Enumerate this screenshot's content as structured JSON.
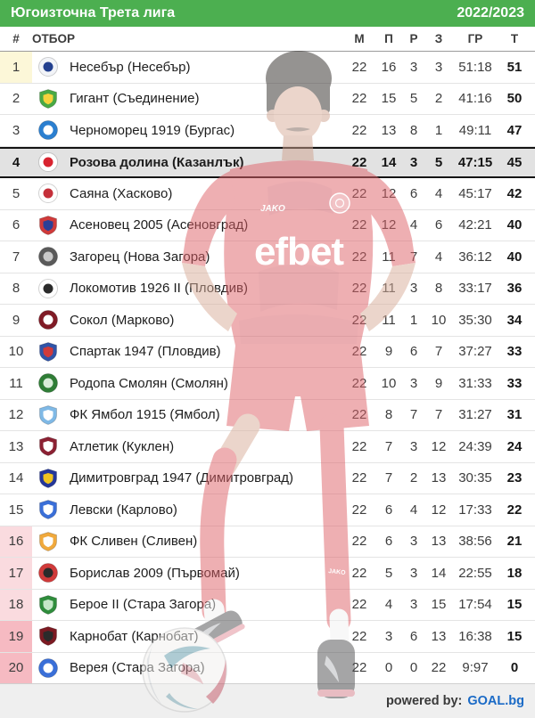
{
  "header": {
    "league": "Югоизточна Трета лига",
    "season": "2022/2023",
    "bg_color": "#4caf50"
  },
  "columns": {
    "pos": "#",
    "team": "ОТБОР",
    "m": "М",
    "p": "П",
    "r": "Р",
    "z": "З",
    "gr": "ГР",
    "t": "Т"
  },
  "highlight_colors": {
    "promotion": "#fcf7d8",
    "relegation_light": "#fadbdf",
    "relegation_dark": "#f6bac2",
    "leader_row": "#e2e2e2"
  },
  "rows": [
    {
      "pos": "1",
      "team": "Несебър (Несебър)",
      "m": "22",
      "p": "16",
      "r": "3",
      "z": "3",
      "gr": "51:18",
      "t": "51",
      "highlight": "promotion",
      "emphasized": false,
      "badge": {
        "shape": "circle",
        "c1": "#f2f4f8",
        "c2": "#23408f"
      }
    },
    {
      "pos": "2",
      "team": "Гигант (Съединение)",
      "m": "22",
      "p": "15",
      "r": "5",
      "z": "2",
      "gr": "41:16",
      "t": "50",
      "highlight": null,
      "emphasized": false,
      "badge": {
        "shape": "shield",
        "c1": "#49a944",
        "c2": "#f5d23c"
      }
    },
    {
      "pos": "3",
      "team": "Черноморец 1919 (Бургас)",
      "m": "22",
      "p": "13",
      "r": "8",
      "z": "1",
      "gr": "49:11",
      "t": "47",
      "highlight": null,
      "emphasized": false,
      "badge": {
        "shape": "circle",
        "c1": "#2b7fd0",
        "c2": "#ffffff"
      }
    },
    {
      "pos": "4",
      "team": "Розова долина (Казанлък)",
      "m": "22",
      "p": "14",
      "r": "3",
      "z": "5",
      "gr": "47:15",
      "t": "45",
      "highlight": null,
      "emphasized": true,
      "badge": {
        "shape": "circle",
        "c1": "#ffffff",
        "c2": "#d8232f"
      }
    },
    {
      "pos": "5",
      "team": "Саяна (Хасково)",
      "m": "22",
      "p": "12",
      "r": "6",
      "z": "4",
      "gr": "45:17",
      "t": "42",
      "highlight": null,
      "emphasized": false,
      "badge": {
        "shape": "circle",
        "c1": "#ffffff",
        "c2": "#c5303a"
      }
    },
    {
      "pos": "6",
      "team": "Асеновец 2005 (Асеновград)",
      "m": "22",
      "p": "12",
      "r": "4",
      "z": "6",
      "gr": "42:21",
      "t": "40",
      "highlight": null,
      "emphasized": false,
      "badge": {
        "shape": "shield",
        "c1": "#d03a3a",
        "c2": "#2c3f96"
      }
    },
    {
      "pos": "7",
      "team": "Загорец (Нова Загора)",
      "m": "22",
      "p": "11",
      "r": "7",
      "z": "4",
      "gr": "36:12",
      "t": "40",
      "highlight": null,
      "emphasized": false,
      "badge": {
        "shape": "circle",
        "c1": "#5a5a5a",
        "c2": "#c9c9c9"
      }
    },
    {
      "pos": "8",
      "team": "Локомотив 1926 II (Пловдив)",
      "m": "22",
      "p": "11",
      "r": "3",
      "z": "8",
      "gr": "33:17",
      "t": "36",
      "highlight": null,
      "emphasized": false,
      "badge": {
        "shape": "circle",
        "c1": "#ffffff",
        "c2": "#2b2b2b"
      }
    },
    {
      "pos": "9",
      "team": "Сокол (Марково)",
      "m": "22",
      "p": "11",
      "r": "1",
      "z": "10",
      "gr": "35:30",
      "t": "34",
      "highlight": null,
      "emphasized": false,
      "badge": {
        "shape": "circle",
        "c1": "#801b26",
        "c2": "#ffffff"
      }
    },
    {
      "pos": "10",
      "team": "Спартак 1947 (Пловдив)",
      "m": "22",
      "p": "9",
      "r": "6",
      "z": "7",
      "gr": "37:27",
      "t": "33",
      "highlight": null,
      "emphasized": false,
      "badge": {
        "shape": "shield",
        "c1": "#3054a8",
        "c2": "#d03a3a"
      }
    },
    {
      "pos": "11",
      "team": "Родопа Смолян (Смолян)",
      "m": "22",
      "p": "10",
      "r": "3",
      "z": "9",
      "gr": "31:33",
      "t": "33",
      "highlight": null,
      "emphasized": false,
      "badge": {
        "shape": "circle",
        "c1": "#2f7d36",
        "c2": "#d9ecd9"
      }
    },
    {
      "pos": "12",
      "team": "ФК Ямбол 1915 (Ямбол)",
      "m": "22",
      "p": "8",
      "r": "7",
      "z": "7",
      "gr": "31:27",
      "t": "31",
      "highlight": null,
      "emphasized": false,
      "badge": {
        "shape": "shield",
        "c1": "#7fb9e6",
        "c2": "#ffffff"
      }
    },
    {
      "pos": "13",
      "team": "Атлетик (Куклен)",
      "m": "22",
      "p": "7",
      "r": "3",
      "z": "12",
      "gr": "24:39",
      "t": "24",
      "highlight": null,
      "emphasized": false,
      "badge": {
        "shape": "shield",
        "c1": "#8c2133",
        "c2": "#ffffff"
      }
    },
    {
      "pos": "14",
      "team": "Димитровград 1947 (Димитровград)",
      "m": "22",
      "p": "7",
      "r": "2",
      "z": "13",
      "gr": "30:35",
      "t": "23",
      "highlight": null,
      "emphasized": false,
      "badge": {
        "shape": "shield",
        "c1": "#24379a",
        "c2": "#f0c41f"
      }
    },
    {
      "pos": "15",
      "team": "Левски (Карлово)",
      "m": "22",
      "p": "6",
      "r": "4",
      "z": "12",
      "gr": "17:33",
      "t": "22",
      "highlight": null,
      "emphasized": false,
      "badge": {
        "shape": "shield",
        "c1": "#3a6fd8",
        "c2": "#ffffff"
      }
    },
    {
      "pos": "16",
      "team": "ФК Сливен (Сливен)",
      "m": "22",
      "p": "6",
      "r": "3",
      "z": "13",
      "gr": "38:56",
      "t": "21",
      "highlight": "relegation_light",
      "emphasized": false,
      "badge": {
        "shape": "shield",
        "c1": "#f0a93c",
        "c2": "#fdfdfd"
      }
    },
    {
      "pos": "17",
      "team": "Борислав 2009 (Първомай)",
      "m": "22",
      "p": "5",
      "r": "3",
      "z": "14",
      "gr": "22:55",
      "t": "18",
      "highlight": "relegation_light",
      "emphasized": false,
      "badge": {
        "shape": "circle",
        "c1": "#d03a3a",
        "c2": "#2b2b2b"
      }
    },
    {
      "pos": "18",
      "team": "Берое II (Стара Загора)",
      "m": "22",
      "p": "4",
      "r": "3",
      "z": "15",
      "gr": "17:54",
      "t": "15",
      "highlight": "relegation_light",
      "emphasized": false,
      "badge": {
        "shape": "shield",
        "c1": "#2f8d3c",
        "c2": "#c5e8c8"
      }
    },
    {
      "pos": "19",
      "team": "Карнобат (Карнобат)",
      "m": "22",
      "p": "3",
      "r": "6",
      "z": "13",
      "gr": "16:38",
      "t": "15",
      "highlight": "relegation_dark",
      "emphasized": false,
      "badge": {
        "shape": "shield",
        "c1": "#7c1a22",
        "c2": "#2b2b2b"
      }
    },
    {
      "pos": "20",
      "team": "Верея (Стара Загора)",
      "m": "22",
      "p": "0",
      "r": "0",
      "z": "22",
      "gr": "9:97",
      "t": "0",
      "highlight": "relegation_dark",
      "emphasized": false,
      "badge": {
        "shape": "circle",
        "c1": "#3a6fd8",
        "c2": "#ffffff"
      }
    }
  ],
  "watermark": {
    "sponsor": "efbet",
    "brand": "JAKO",
    "sock_brand": "JAKO"
  },
  "footer": {
    "powered_by": "powered by:",
    "brand": "GOAL.bg",
    "brand_color": "#1a6ac6"
  }
}
